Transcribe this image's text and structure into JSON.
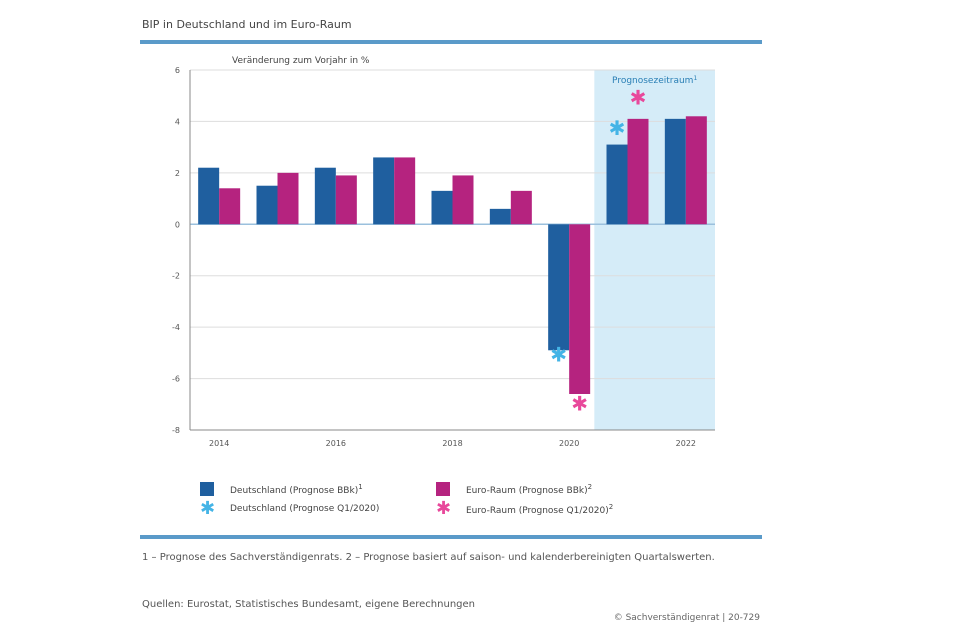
{
  "header": {
    "title": "BIP in Deutschland und im Euro-Raum"
  },
  "chart_data": {
    "type": "bar",
    "ylabel": "Veränderung zum Vorjahr in %",
    "ylim": [
      -8,
      6
    ],
    "yticks": [
      6,
      4,
      2,
      0,
      -2,
      -4,
      -6,
      -8
    ],
    "xticks": [
      "2014",
      "2016",
      "2018",
      "2020",
      "2022"
    ],
    "categories": [
      "2014",
      "2015",
      "2016",
      "2017",
      "2018",
      "2019",
      "2020",
      "2021",
      "2022"
    ],
    "forecast_label": "Prognosezeitraum",
    "forecast_sup": "1",
    "forecast_from_index": 7,
    "series": [
      {
        "name": "Deutschland (Prognose BBk)",
        "sup": "1",
        "color": "#1f5f9f",
        "values": [
          2.2,
          1.5,
          2.2,
          2.6,
          1.3,
          0.6,
          -4.9,
          3.1,
          4.1
        ]
      },
      {
        "name": "Euro-Raum (Prognose BBk)",
        "sup": "2",
        "color": "#b5237f",
        "values": [
          1.4,
          2.0,
          1.9,
          2.6,
          1.9,
          1.3,
          -6.6,
          4.1,
          4.2
        ]
      }
    ],
    "markers": [
      {
        "name": "Deutschland (Prognose Q1/2020)",
        "color": "#44b4e6",
        "points": [
          {
            "x": "2020",
            "y": -5.1
          },
          {
            "x": "2021",
            "y": 3.7
          }
        ]
      },
      {
        "name": "Euro-Raum (Prognose Q1/2020)",
        "sup": "2",
        "color": "#e8489b",
        "points": [
          {
            "x": "2020",
            "y": -7.0
          },
          {
            "x": "2021",
            "y": 4.9
          }
        ]
      }
    ],
    "colors": {
      "forecast_band": "#d5ecf8",
      "grid": "#dddddd"
    }
  },
  "notes": {
    "footnote": "1 – Prognose des Sachverständigenrats. 2 – Prognose basiert auf saison- und kalenderbereinigten Quartalswerten.",
    "source": "Quellen: Eurostat, Statistisches Bundesamt, eigene Berechnungen",
    "ref": "© Sachverständigenrat | 20-729"
  }
}
